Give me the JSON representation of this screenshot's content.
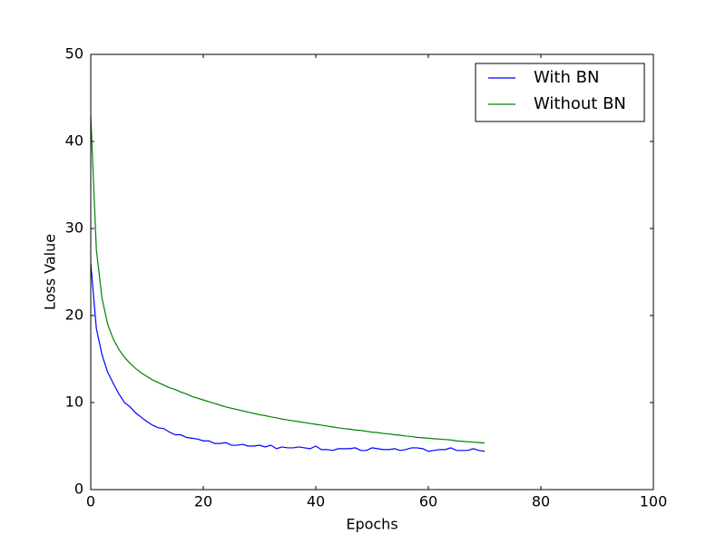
{
  "chart_data": {
    "type": "line",
    "x_label": "Epochs",
    "y_label": "Loss Value",
    "x": [
      0,
      1,
      2,
      3,
      4,
      5,
      6,
      7,
      8,
      9,
      10,
      11,
      12,
      13,
      14,
      15,
      16,
      17,
      18,
      19,
      20,
      21,
      22,
      23,
      24,
      25,
      26,
      27,
      28,
      29,
      30,
      31,
      32,
      33,
      34,
      35,
      36,
      37,
      38,
      39,
      40,
      41,
      42,
      43,
      44,
      45,
      46,
      47,
      48,
      49,
      50,
      51,
      52,
      53,
      54,
      55,
      56,
      57,
      58,
      59,
      60,
      61,
      62,
      63,
      64,
      65,
      66,
      67,
      68,
      69,
      70
    ],
    "series": [
      {
        "name": "With BN",
        "color": "#0000ff",
        "values": [
          26,
          18.5,
          15.5,
          13.5,
          12.2,
          11.0,
          10.0,
          9.5,
          8.8,
          8.3,
          7.8,
          7.4,
          7.1,
          7.0,
          6.6,
          6.3,
          6.3,
          6.0,
          5.9,
          5.8,
          5.6,
          5.6,
          5.3,
          5.3,
          5.4,
          5.1,
          5.1,
          5.2,
          5.0,
          5.0,
          5.1,
          4.9,
          5.1,
          4.7,
          4.9,
          4.8,
          4.8,
          4.9,
          4.8,
          4.7,
          5.0,
          4.6,
          4.6,
          4.5,
          4.7,
          4.7,
          4.7,
          4.8,
          4.5,
          4.5,
          4.8,
          4.7,
          4.6,
          4.6,
          4.7,
          4.5,
          4.6,
          4.8,
          4.8,
          4.7,
          4.4,
          4.5,
          4.6,
          4.6,
          4.8,
          4.5,
          4.5,
          4.5,
          4.7,
          4.5,
          4.4
        ]
      },
      {
        "name": "Without BN",
        "color": "#008000",
        "values": [
          43,
          27.5,
          22,
          19,
          17.3,
          16.1,
          15.2,
          14.5,
          13.9,
          13.4,
          13.0,
          12.6,
          12.3,
          12.0,
          11.7,
          11.5,
          11.2,
          11.0,
          10.7,
          10.5,
          10.3,
          10.1,
          9.9,
          9.7,
          9.5,
          9.35,
          9.2,
          9.05,
          8.9,
          8.75,
          8.6,
          8.5,
          8.35,
          8.25,
          8.1,
          8.0,
          7.9,
          7.8,
          7.7,
          7.6,
          7.5,
          7.4,
          7.3,
          7.2,
          7.1,
          7.0,
          6.95,
          6.85,
          6.8,
          6.7,
          6.6,
          6.55,
          6.45,
          6.4,
          6.3,
          6.25,
          6.15,
          6.1,
          6.0,
          5.95,
          5.9,
          5.85,
          5.8,
          5.75,
          5.7,
          5.6,
          5.55,
          5.5,
          5.45,
          5.4,
          5.35
        ]
      }
    ],
    "xlim": [
      0,
      100
    ],
    "ylim": [
      0,
      50
    ],
    "xticks": [
      0,
      20,
      40,
      60,
      80,
      100
    ],
    "yticks": [
      0,
      10,
      20,
      30,
      40,
      50
    ],
    "legend": "upper right"
  }
}
